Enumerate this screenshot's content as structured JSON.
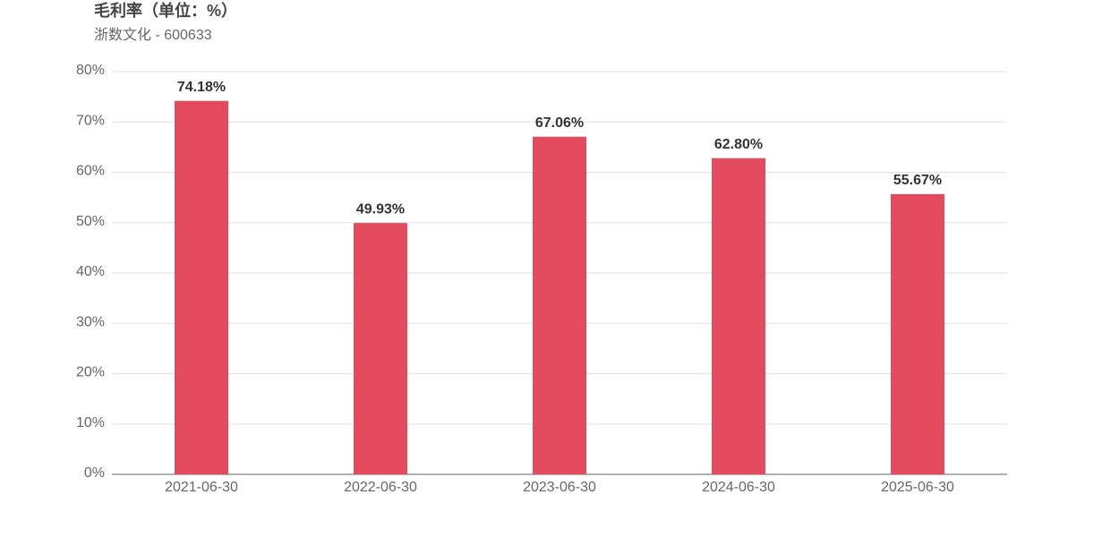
{
  "chart_data": {
    "type": "bar",
    "title": "毛利率（单位：%）",
    "subtitle": "浙数文化 - 600633",
    "categories": [
      "2021-06-30",
      "2022-06-30",
      "2023-06-30",
      "2024-06-30",
      "2025-06-30"
    ],
    "values": [
      74.18,
      49.93,
      67.06,
      62.8,
      55.67
    ],
    "value_labels": [
      "74.18%",
      "49.93%",
      "67.06%",
      "62.80%",
      "55.67%"
    ],
    "color": "#e54b5e",
    "ylim": [
      0,
      80
    ],
    "yticks": [
      {
        "value": 0,
        "label": "0%"
      },
      {
        "value": 10,
        "label": "10%"
      },
      {
        "value": 20,
        "label": "20%"
      },
      {
        "value": 30,
        "label": "30%"
      },
      {
        "value": 40,
        "label": "40%"
      },
      {
        "value": 50,
        "label": "50%"
      },
      {
        "value": 60,
        "label": "60%"
      },
      {
        "value": 70,
        "label": "70%"
      },
      {
        "value": 80,
        "label": "80%"
      }
    ],
    "grid": true
  }
}
